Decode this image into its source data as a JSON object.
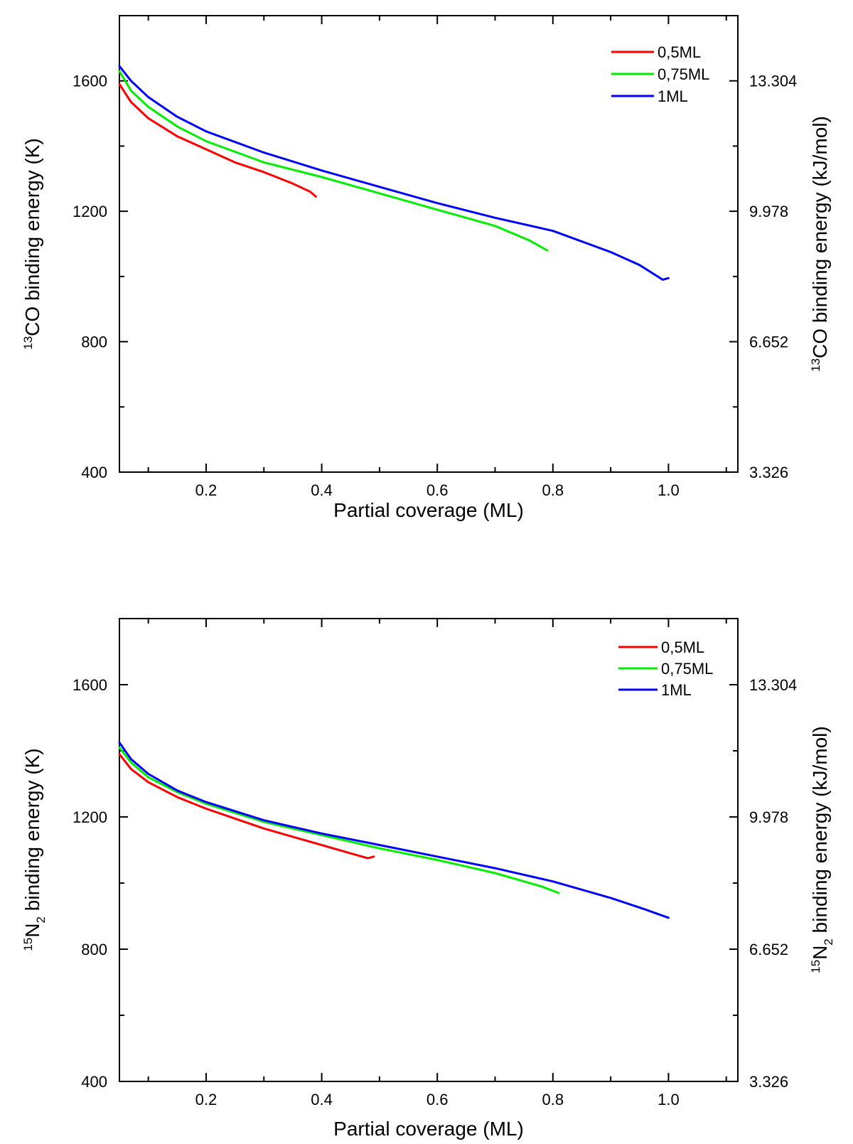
{
  "chart_data": [
    {
      "type": "line",
      "panel": "top",
      "xlabel": "Partial coverage (ML)",
      "ylabel_left": {
        "sup": "13",
        "main": "CO binding energy (K)"
      },
      "ylabel_right": {
        "sup": "13",
        "main": "CO binding energy (kJ/mol)"
      },
      "xlim": [
        0.05,
        1.12
      ],
      "ylim": [
        400,
        1800
      ],
      "x_ticks": [
        0.2,
        0.4,
        0.6,
        0.8,
        1.0
      ],
      "x_tick_labels": [
        "0.2",
        "0.4",
        "0.6",
        "0.8",
        "1.0"
      ],
      "y_ticks_left": [
        400,
        800,
        1200,
        1600
      ],
      "y_tick_labels_left": [
        "400",
        "800",
        "1200",
        "1600"
      ],
      "y_tick_labels_right": [
        "3.326",
        "6.652",
        "9.978",
        "13.304"
      ],
      "legend_position": "top-right",
      "series": [
        {
          "name": "0,5ML",
          "color": "#ff0000",
          "x": [
            0.05,
            0.07,
            0.1,
            0.15,
            0.2,
            0.25,
            0.3,
            0.35,
            0.38,
            0.39
          ],
          "y": [
            1590,
            1535,
            1485,
            1430,
            1390,
            1350,
            1320,
            1285,
            1260,
            1245
          ]
        },
        {
          "name": "0,75ML",
          "color": "#00ee00",
          "x": [
            0.05,
            0.07,
            0.1,
            0.15,
            0.2,
            0.3,
            0.4,
            0.5,
            0.6,
            0.7,
            0.76,
            0.78,
            0.79
          ],
          "y": [
            1630,
            1570,
            1520,
            1460,
            1415,
            1350,
            1305,
            1255,
            1205,
            1155,
            1110,
            1090,
            1080
          ]
        },
        {
          "name": "1ML",
          "color": "#0000ff",
          "x": [
            0.05,
            0.07,
            0.1,
            0.15,
            0.2,
            0.3,
            0.4,
            0.5,
            0.6,
            0.7,
            0.8,
            0.9,
            0.95,
            0.99,
            1.0
          ],
          "y": [
            1645,
            1600,
            1550,
            1490,
            1445,
            1380,
            1325,
            1275,
            1225,
            1180,
            1140,
            1075,
            1035,
            990,
            995
          ]
        }
      ]
    },
    {
      "type": "line",
      "panel": "bottom",
      "xlabel": "Partial coverage (ML)",
      "ylabel_left": {
        "sup": "15",
        "main": "N",
        "sub": "2",
        "rest": " binding energy (K)"
      },
      "ylabel_right": {
        "sup": "15",
        "main": "N",
        "sub": "2",
        "rest": " binding energy  (kJ/mol)"
      },
      "xlim": [
        0.05,
        1.12
      ],
      "ylim": [
        400,
        1800
      ],
      "x_ticks": [
        0.2,
        0.4,
        0.6,
        0.8,
        1.0
      ],
      "x_tick_labels": [
        "0.2",
        "0.4",
        "0.6",
        "0.8",
        "1.0"
      ],
      "y_ticks_left": [
        400,
        800,
        1200,
        1600
      ],
      "y_tick_labels_left": [
        "400",
        "800",
        "1200",
        "1600"
      ],
      "y_tick_labels_right": [
        "3.326",
        "6.652",
        "9.978",
        "13.304"
      ],
      "legend_position": "top-right",
      "series": [
        {
          "name": "0,5ML",
          "color": "#ff0000",
          "x": [
            0.05,
            0.07,
            0.1,
            0.15,
            0.2,
            0.25,
            0.3,
            0.35,
            0.4,
            0.45,
            0.48,
            0.49
          ],
          "y": [
            1390,
            1345,
            1305,
            1260,
            1225,
            1195,
            1165,
            1140,
            1115,
            1090,
            1075,
            1080
          ]
        },
        {
          "name": "0,75ML",
          "color": "#00ee00",
          "x": [
            0.05,
            0.07,
            0.1,
            0.15,
            0.2,
            0.3,
            0.4,
            0.5,
            0.6,
            0.7,
            0.78,
            0.81
          ],
          "y": [
            1410,
            1365,
            1320,
            1275,
            1240,
            1185,
            1145,
            1105,
            1070,
            1030,
            990,
            970
          ]
        },
        {
          "name": "1ML",
          "color": "#0000ff",
          "x": [
            0.05,
            0.07,
            0.1,
            0.15,
            0.2,
            0.3,
            0.4,
            0.5,
            0.6,
            0.7,
            0.8,
            0.9,
            0.96,
            1.0
          ],
          "y": [
            1425,
            1375,
            1330,
            1280,
            1245,
            1190,
            1150,
            1115,
            1080,
            1045,
            1005,
            955,
            920,
            895
          ]
        }
      ]
    }
  ]
}
